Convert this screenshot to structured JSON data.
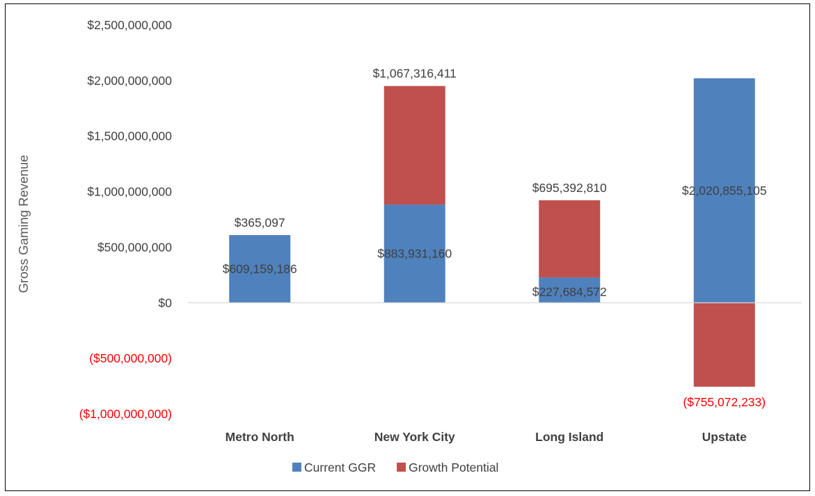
{
  "chart_data": {
    "type": "bar",
    "stacked": true,
    "ylabel": "Gross Gaming Revenue",
    "ylim": [
      -1000000000,
      2500000000
    ],
    "yticks": [
      2500000000,
      2000000000,
      1500000000,
      1000000000,
      500000000,
      0,
      -500000000,
      -1000000000
    ],
    "ytick_labels": [
      "$2,500,000,000",
      "$2,000,000,000",
      "$1,500,000,000",
      "$1,000,000,000",
      "$500,000,000",
      "$0",
      "($500,000,000)",
      "($1,000,000,000)"
    ],
    "categories": [
      "Metro North",
      "New York City",
      "Long Island",
      "Upstate"
    ],
    "series": [
      {
        "name": "Current GGR",
        "values": [
          609159186,
          883931160,
          227684572,
          2020855105
        ],
        "labels": [
          "$609,159,186",
          "$883,931,160",
          "$227,684,572",
          "$2,020,855,105"
        ]
      },
      {
        "name": "Growth Potential",
        "values": [
          365097,
          1067316411,
          695392810,
          -755072233
        ],
        "labels": [
          "$365,097",
          "$1,067,316,411",
          "$695,392,810",
          "($755,072,233)"
        ]
      }
    ],
    "legend": "bottom",
    "grid": false
  },
  "colors": {
    "current": "#4f81bd",
    "growth": "#c0504d",
    "negative_text": "#ff0000",
    "text": "#404040",
    "axis": "#d9d9d9"
  }
}
